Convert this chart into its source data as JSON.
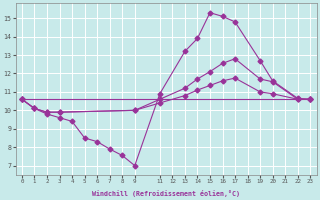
{
  "xlabel": "Windchill (Refroidissement éolien,°C)",
  "background_color": "#c8eaea",
  "line_color": "#993399",
  "grid_color": "#ffffff",
  "xlim": [
    -0.5,
    23.5
  ],
  "ylim": [
    6.5,
    15.8
  ],
  "yticks": [
    7,
    8,
    9,
    10,
    11,
    12,
    13,
    14,
    15
  ],
  "curve1_x": [
    0,
    1,
    2,
    3,
    4,
    5,
    6,
    7,
    8,
    9,
    11,
    13,
    14,
    15,
    16,
    17,
    19,
    20,
    22,
    23
  ],
  "curve1_y": [
    10.6,
    10.1,
    9.8,
    9.6,
    9.4,
    8.5,
    8.3,
    7.9,
    7.55,
    7.0,
    10.9,
    13.2,
    13.9,
    15.3,
    15.1,
    14.8,
    12.7,
    11.6,
    10.65,
    10.6
  ],
  "curve2_x": [
    0,
    1,
    2,
    3,
    9,
    11,
    13,
    14,
    15,
    16,
    17,
    19,
    20,
    22,
    23
  ],
  "curve2_y": [
    10.6,
    10.1,
    9.9,
    9.9,
    10.0,
    10.6,
    11.2,
    11.7,
    12.1,
    12.55,
    12.8,
    11.7,
    11.55,
    10.6,
    10.6
  ],
  "curve3_x": [
    0,
    1,
    2,
    3,
    9,
    11,
    13,
    14,
    15,
    16,
    17,
    19,
    20,
    22,
    23
  ],
  "curve3_y": [
    10.6,
    10.1,
    9.9,
    9.9,
    10.0,
    10.4,
    10.8,
    11.1,
    11.35,
    11.6,
    11.75,
    11.0,
    10.9,
    10.6,
    10.6
  ],
  "curve4_x": [
    0,
    23
  ],
  "curve4_y": [
    10.6,
    10.6
  ]
}
